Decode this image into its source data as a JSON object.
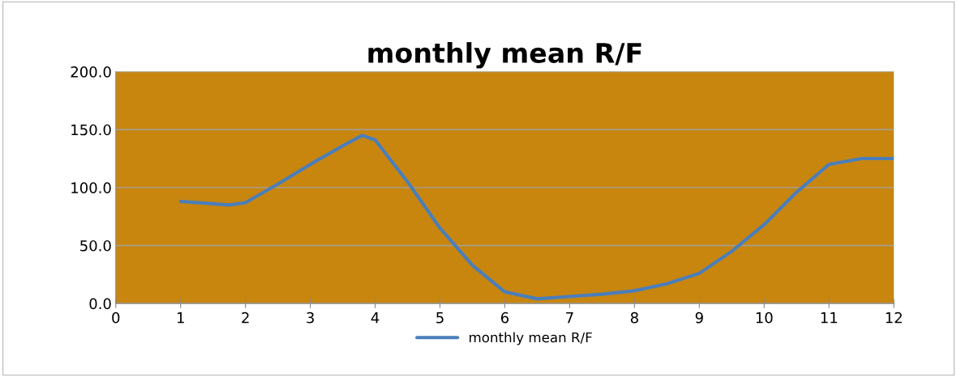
{
  "chart_data": {
    "type": "line",
    "title": "monthly mean R/F",
    "x": [
      1,
      1.5,
      1.75,
      2,
      2.5,
      3,
      3.5,
      3.8,
      4,
      4.5,
      5,
      5.5,
      6,
      6.5,
      7,
      7.5,
      8,
      8.5,
      9,
      9.5,
      10,
      10.5,
      11,
      11.5,
      12
    ],
    "series": [
      {
        "name": "monthly mean R/F",
        "color": "#4a7ebb",
        "values": [
          88,
          86,
          85,
          87,
          103,
          120,
          136,
          145,
          141,
          105,
          65,
          33,
          10,
          4,
          6,
          8,
          11,
          17,
          26,
          45,
          68,
          96,
          120,
          125,
          125
        ]
      }
    ],
    "xlim": [
      0,
      12
    ],
    "xticks": [
      0,
      1,
      2,
      3,
      4,
      5,
      6,
      7,
      8,
      9,
      10,
      11,
      12
    ],
    "ylim": [
      0,
      200
    ],
    "yticks": [
      {
        "value": 0,
        "label": "0.0"
      },
      {
        "value": 50,
        "label": "50.0"
      },
      {
        "value": 100,
        "label": "100.0"
      },
      {
        "value": 150,
        "label": "150.0"
      },
      {
        "value": 200,
        "label": "200.0"
      }
    ],
    "grid": "y",
    "legend": "bottom",
    "line_style": "solid",
    "marker": "none"
  }
}
